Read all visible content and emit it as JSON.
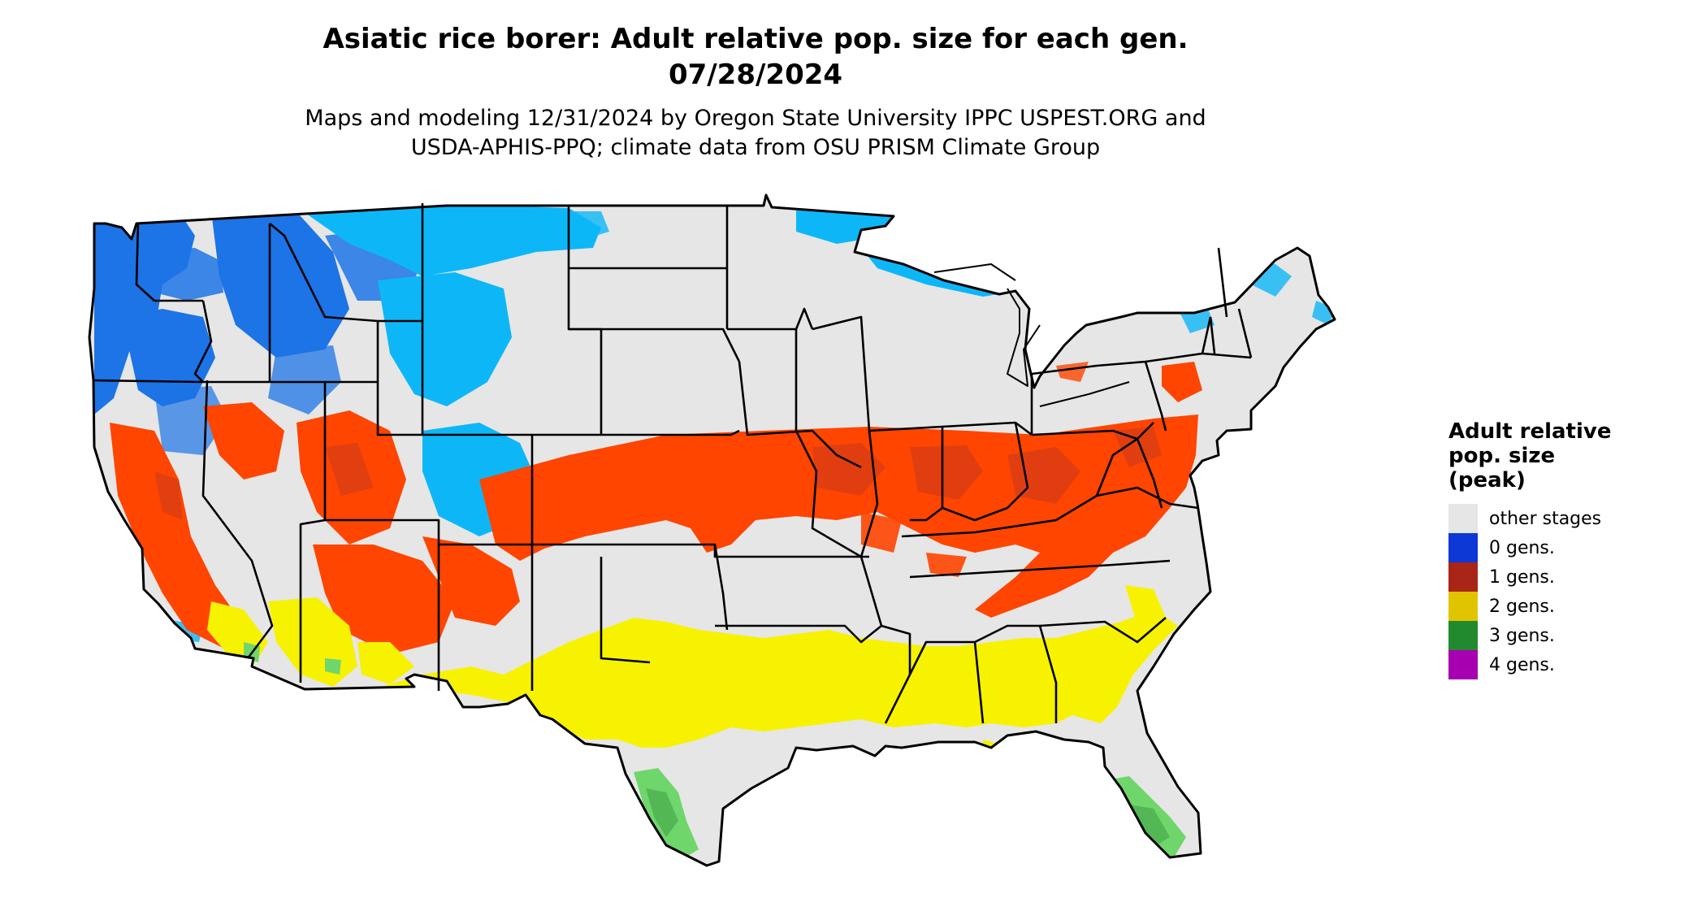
{
  "title": {
    "line1": "Asiatic rice borer: Adult relative pop. size for each gen.",
    "line2": "07/28/2024"
  },
  "subtitle": {
    "line1": "Maps and modeling 12/31/2024 by Oregon State University IPPC USPEST.ORG and",
    "line2": "USDA-APHIS-PPQ; climate data from OSU PRISM Climate Group"
  },
  "legend": {
    "title_line1": "Adult relative",
    "title_line2": "pop. size",
    "title_line3": "(peak)",
    "items": [
      {
        "label": "other stages",
        "color": "#e6e6e6"
      },
      {
        "label": "0 gens.",
        "color": "#0e38d6"
      },
      {
        "label": "1 gens.",
        "color": "#a82518"
      },
      {
        "label": "2 gens.",
        "color": "#e0c400"
      },
      {
        "label": "3 gens.",
        "color": "#218a2e"
      },
      {
        "label": "4 gens.",
        "color": "#a700b0"
      }
    ]
  },
  "map_colors": {
    "land": "#e6e6e6",
    "zero_gen_dark": "#1c74e6",
    "zero_gen_light": "#0db7f7",
    "one_gen": "#ff4500",
    "one_gen_dark": "#c83a1e",
    "two_gen": "#f7f200",
    "three_gen": "#6fd66b",
    "three_gen_dark": "#3c9f46",
    "borders": "#000000"
  }
}
